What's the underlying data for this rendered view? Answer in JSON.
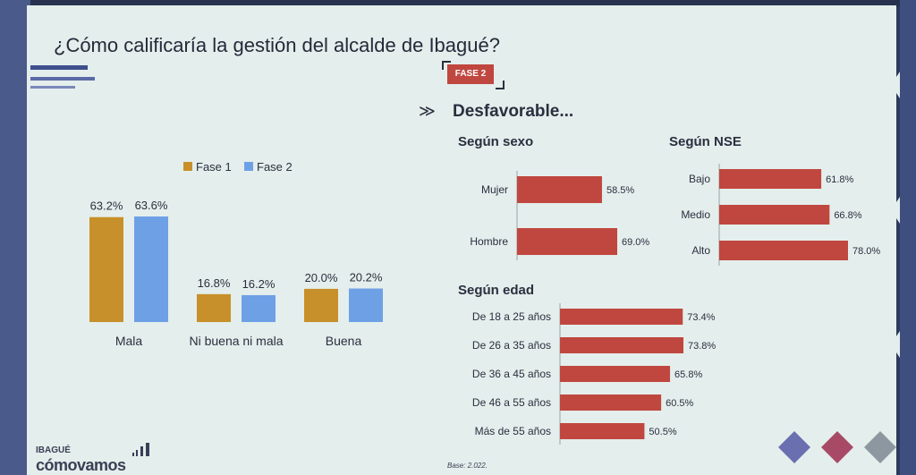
{
  "title": "¿Cómo calificaría la gestión del alcalde de Ibagué?",
  "badge": "FASE 2",
  "subheading": "Desfavorable...",
  "logo": {
    "top": "IBAGUÉ",
    "bottom": "cómovamos"
  },
  "footer_note": "Base: 2.022.",
  "colors": {
    "fase1": "#c8902a",
    "fase2": "#6ea0e6",
    "red": "#c0473f"
  },
  "legend": [
    "Fase 1",
    "Fase 2"
  ],
  "chart_data": [
    {
      "type": "bar",
      "categories": [
        "Mala",
        "Ni buena ni mala",
        "Buena"
      ],
      "series": [
        {
          "name": "Fase 1",
          "values": [
            63.2,
            16.8,
            20.0
          ],
          "labels": [
            "63.2%",
            "16.8%",
            "20.0%"
          ]
        },
        {
          "name": "Fase 2",
          "values": [
            63.6,
            16.2,
            20.2
          ],
          "labels": [
            "63.6%",
            "16.2%",
            "20.2%"
          ]
        }
      ],
      "legend_position": "top"
    },
    {
      "type": "bar",
      "orientation": "horizontal",
      "title": "Según sexo",
      "categories": [
        "Mujer",
        "Hombre"
      ],
      "values": [
        58.5,
        69.0
      ],
      "labels": [
        "58.5%",
        "69.0%"
      ]
    },
    {
      "type": "bar",
      "orientation": "horizontal",
      "title": "Según NSE",
      "categories": [
        "Bajo",
        "Medio",
        "Alto"
      ],
      "values": [
        61.8,
        66.8,
        78.0
      ],
      "labels": [
        "61.8%",
        "66.8%",
        "78.0%"
      ]
    },
    {
      "type": "bar",
      "orientation": "horizontal",
      "title": "Según edad",
      "categories": [
        "De 18 a 25 años",
        "De 26 a 35 años",
        "De 36 a 45 años",
        "De 46 a 55 años",
        "Más de 55 años"
      ],
      "values": [
        73.4,
        73.8,
        65.8,
        60.5,
        50.5
      ],
      "labels": [
        "73.4%",
        "73.8%",
        "65.8%",
        "60.5%",
        "50.5%"
      ]
    }
  ]
}
